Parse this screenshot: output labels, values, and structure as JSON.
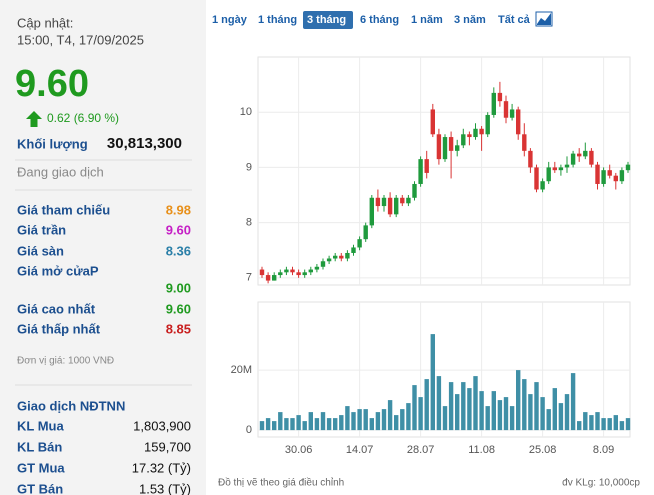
{
  "header": {
    "updated_label": "Cập nhật:",
    "updated_time": "15:00, T4, 17/09/2025"
  },
  "quote": {
    "price": "9.60",
    "change": "0.62 (6.90 %)",
    "volume_label": "Khối lượng",
    "volume": "30,813,300",
    "status": "Đang giao dịch"
  },
  "rows": [
    {
      "label": "Giá tham chiếu",
      "value": "8.98",
      "color": "#e8901a"
    },
    {
      "label": "Giá trần",
      "value": "9.60",
      "color": "#c51fc5"
    },
    {
      "label": "Giá sàn",
      "value": "8.36",
      "color": "#2a7fa8"
    },
    {
      "label": "Giá mở cửaP",
      "value": "9.00",
      "color": "#1f9a1f"
    },
    {
      "label": "Giá cao nhất",
      "value": "9.60",
      "color": "#1f9a1f"
    },
    {
      "label": "Giá thấp nhất",
      "value": "8.85",
      "color": "#c81e1e"
    }
  ],
  "unit_note": "Đơn vị giá: 1000 VNĐ",
  "foreign": {
    "title": "Giao dịch NĐTNN",
    "rows": [
      {
        "label": "KL Mua",
        "value": "1,803,900"
      },
      {
        "label": "KL Bán",
        "value": "159,700"
      },
      {
        "label": "GT Mua",
        "value": "17.32 (Tỷ)"
      },
      {
        "label": "GT Bán",
        "value": "1.53 (Tỷ)"
      }
    ]
  },
  "timeframes": {
    "options": [
      "1 ngày",
      "1 tháng",
      "3 tháng",
      "6 tháng",
      "1 năm",
      "3 năm",
      "Tất cả"
    ],
    "selected": 2
  },
  "footnotes": {
    "left": "Đồ thị vẽ theo giá điều chỉnh",
    "right": "đv KLg: 10,000cp"
  },
  "chart_data": [
    {
      "type": "candlestick",
      "up_color": "#1f9a3d",
      "down_color": "#d93434",
      "ylim": [
        6.87,
        11.0
      ],
      "yticks": [
        7,
        8,
        9,
        10
      ],
      "grid": true,
      "open": [
        7.15,
        7.05,
        6.95,
        7.05,
        7.1,
        7.15,
        7.1,
        7.05,
        7.1,
        7.15,
        7.2,
        7.3,
        7.35,
        7.4,
        7.35,
        7.45,
        7.55,
        7.7,
        7.95,
        8.45,
        8.3,
        8.45,
        8.15,
        8.45,
        8.35,
        8.45,
        8.7,
        9.15,
        10.05,
        9.6,
        9.15,
        9.55,
        9.3,
        9.4,
        9.6,
        9.55,
        9.7,
        9.6,
        9.95,
        10.35,
        10.2,
        9.9,
        10.05,
        9.6,
        9.3,
        9.0,
        8.6,
        8.75,
        9.0,
        8.95,
        9.0,
        9.05,
        9.25,
        9.2,
        9.3,
        9.05,
        8.7,
        8.95,
        8.85,
        8.75,
        8.95
      ],
      "high": [
        7.2,
        7.1,
        7.1,
        7.15,
        7.2,
        7.2,
        7.15,
        7.15,
        7.2,
        7.25,
        7.35,
        7.4,
        7.45,
        7.45,
        7.5,
        7.6,
        7.75,
        8.0,
        8.5,
        8.6,
        8.5,
        8.55,
        8.5,
        8.5,
        8.5,
        8.75,
        9.2,
        9.3,
        10.15,
        9.7,
        9.6,
        9.65,
        9.5,
        9.7,
        9.65,
        9.8,
        9.75,
        10.0,
        10.45,
        10.55,
        10.3,
        10.15,
        10.1,
        9.8,
        9.35,
        9.05,
        8.8,
        9.1,
        9.1,
        9.05,
        9.2,
        9.3,
        9.35,
        9.45,
        9.35,
        9.1,
        9.0,
        9.05,
        8.9,
        9.0,
        9.1
      ],
      "low": [
        7.0,
        6.9,
        6.95,
        7.0,
        7.05,
        7.05,
        7.0,
        7.0,
        7.05,
        7.1,
        7.15,
        7.25,
        7.3,
        7.3,
        7.3,
        7.4,
        7.5,
        7.65,
        7.9,
        8.2,
        8.2,
        8.1,
        8.1,
        8.3,
        8.3,
        8.4,
        8.65,
        8.8,
        9.55,
        9.05,
        9.1,
        8.8,
        9.2,
        9.35,
        9.4,
        9.5,
        9.3,
        9.55,
        9.9,
        10.1,
        9.8,
        9.85,
        9.5,
        9.2,
        8.9,
        8.55,
        8.55,
        8.7,
        8.9,
        8.85,
        8.9,
        9.0,
        9.1,
        9.15,
        9.0,
        8.6,
        8.65,
        8.8,
        8.6,
        8.7,
        8.9
      ],
      "close": [
        7.05,
        6.95,
        7.05,
        7.1,
        7.15,
        7.1,
        7.05,
        7.1,
        7.15,
        7.2,
        7.3,
        7.35,
        7.4,
        7.35,
        7.45,
        7.55,
        7.7,
        7.95,
        8.45,
        8.3,
        8.45,
        8.15,
        8.45,
        8.35,
        8.45,
        8.7,
        9.15,
        8.9,
        9.6,
        9.15,
        9.55,
        9.3,
        9.4,
        9.6,
        9.55,
        9.7,
        9.6,
        9.95,
        10.35,
        10.2,
        9.9,
        10.05,
        9.6,
        9.3,
        9.0,
        8.6,
        8.75,
        9.0,
        8.95,
        9.0,
        9.05,
        9.25,
        9.2,
        9.3,
        9.05,
        8.7,
        8.95,
        8.85,
        8.75,
        8.95,
        9.05
      ]
    },
    {
      "type": "bar",
      "color": "#3f8fa6",
      "ylim": [
        -2300000,
        42700000
      ],
      "yticks": [
        0,
        {
          "value": 20000000,
          "label": "20M"
        }
      ],
      "grid": true,
      "categories": [
        null,
        null,
        null,
        null,
        null,
        null,
        "30.06",
        null,
        null,
        null,
        null,
        null,
        null,
        null,
        null,
        null,
        "14.07",
        null,
        null,
        null,
        null,
        null,
        null,
        null,
        null,
        null,
        "28.07",
        null,
        null,
        null,
        null,
        null,
        null,
        null,
        null,
        null,
        "11.08",
        null,
        null,
        null,
        null,
        null,
        null,
        null,
        null,
        null,
        "25.08",
        null,
        null,
        null,
        null,
        null,
        null,
        null,
        null,
        null,
        "8.09",
        null,
        null,
        null,
        null
      ],
      "values": [
        3000000,
        4000000,
        3000000,
        6000000,
        4000000,
        4000000,
        5000000,
        3000000,
        6000000,
        4000000,
        6000000,
        4000000,
        4000000,
        5000000,
        8000000,
        6000000,
        7000000,
        7000000,
        4000000,
        6000000,
        7000000,
        10000000,
        5000000,
        7000000,
        9000000,
        15000000,
        11000000,
        17000000,
        32000000,
        18000000,
        8000000,
        16000000,
        12000000,
        16000000,
        14000000,
        18000000,
        13000000,
        8000000,
        13000000,
        10000000,
        11000000,
        8000000,
        20000000,
        17000000,
        12000000,
        16000000,
        11000000,
        7000000,
        14000000,
        9000000,
        12000000,
        19000000,
        3000000,
        6000000,
        5000000,
        6000000,
        4000000,
        4000000,
        5000000,
        3000000,
        4000000
      ]
    }
  ]
}
